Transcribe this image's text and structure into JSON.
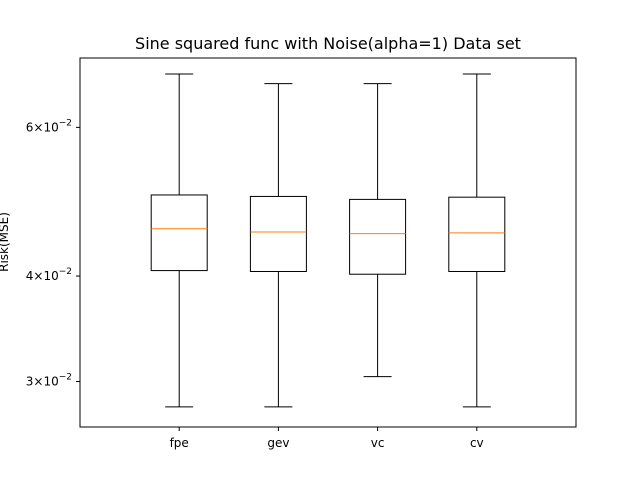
{
  "chart_data": {
    "type": "box",
    "title": "Sine squared func with Noise(alpha=1) Data set",
    "xlabel": "",
    "ylabel": "Risk(MSE)",
    "yscale": "log",
    "ylim": [
      0.0265,
      0.0725
    ],
    "yticks": [
      {
        "value": 0.03,
        "label_base": "3×10",
        "label_exp": "−2"
      },
      {
        "value": 0.04,
        "label_base": "4×10",
        "label_exp": "−2"
      },
      {
        "value": 0.06,
        "label_base": "6×10",
        "label_exp": "−2"
      }
    ],
    "categories": [
      "fpe",
      "gev",
      "vc",
      "cv"
    ],
    "boxes": [
      {
        "label": "fpe",
        "whislo": 0.028,
        "q1": 0.0406,
        "med": 0.0455,
        "q3": 0.0499,
        "whishi": 0.0694
      },
      {
        "label": "gev",
        "whislo": 0.028,
        "q1": 0.0405,
        "med": 0.0451,
        "q3": 0.0497,
        "whishi": 0.0676
      },
      {
        "label": "vc",
        "whislo": 0.0304,
        "q1": 0.0402,
        "med": 0.0449,
        "q3": 0.0493,
        "whishi": 0.0676
      },
      {
        "label": "cv",
        "whislo": 0.028,
        "q1": 0.0405,
        "med": 0.045,
        "q3": 0.0496,
        "whishi": 0.0694
      }
    ],
    "colors": {
      "box": "#000000",
      "median": "#ff7f0e",
      "background": "#ffffff"
    }
  }
}
